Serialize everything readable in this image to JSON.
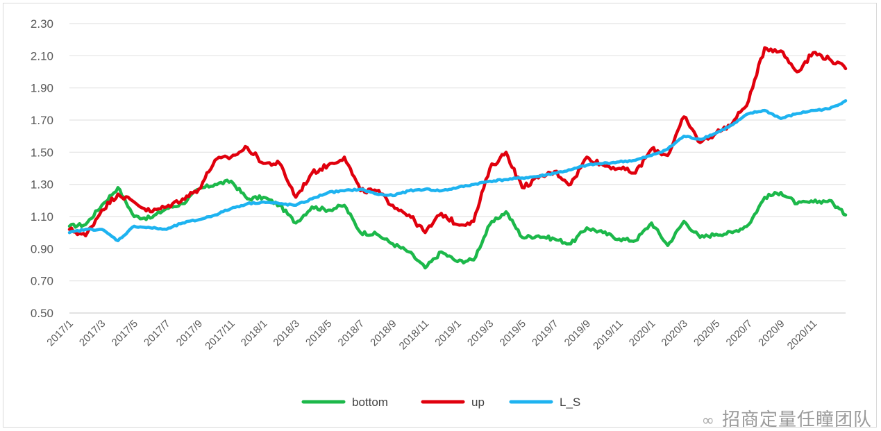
{
  "chart_data": {
    "type": "line",
    "title": "",
    "xlabel": "",
    "ylabel": "",
    "ylim": [
      0.5,
      2.3
    ],
    "yticks": [
      "0.50",
      "0.70",
      "0.90",
      "1.10",
      "1.30",
      "1.50",
      "1.70",
      "1.90",
      "2.10",
      "2.30"
    ],
    "xticks": [
      "2017/1",
      "2017/3",
      "2017/5",
      "2017/7",
      "2017/9",
      "2017/11",
      "2018/1",
      "2018/3",
      "2018/5",
      "2018/7",
      "2018/9",
      "2018/11",
      "2019/1",
      "2019/3",
      "2019/5",
      "2019/7",
      "2019/9",
      "2019/11",
      "2020/1",
      "2020/3",
      "2020/5",
      "2020/7",
      "2020/9",
      "2020/11"
    ],
    "grid": true,
    "legend_position": "bottom",
    "x": [
      "2017/1",
      "2017/2",
      "2017/3",
      "2017/4",
      "2017/5",
      "2017/6",
      "2017/7",
      "2017/8",
      "2017/9",
      "2017/10",
      "2017/11",
      "2017/12",
      "2018/1",
      "2018/2",
      "2018/3",
      "2018/4",
      "2018/5",
      "2018/6",
      "2018/7",
      "2018/8",
      "2018/9",
      "2018/10",
      "2018/11",
      "2018/12",
      "2019/1",
      "2019/2",
      "2019/3",
      "2019/4",
      "2019/5",
      "2019/6",
      "2019/7",
      "2019/8",
      "2019/9",
      "2019/10",
      "2019/11",
      "2019/12",
      "2020/1",
      "2020/2",
      "2020/3",
      "2020/4",
      "2020/5",
      "2020/6",
      "2020/7",
      "2020/8",
      "2020/9",
      "2020/10",
      "2020/11",
      "2020/12",
      "2021/1"
    ],
    "series": [
      {
        "name": "bottom",
        "color": "#1cb84a",
        "values": [
          1.04,
          1.05,
          1.17,
          1.28,
          1.1,
          1.09,
          1.15,
          1.18,
          1.27,
          1.3,
          1.32,
          1.21,
          1.22,
          1.17,
          1.06,
          1.16,
          1.14,
          1.17,
          1.0,
          0.99,
          0.93,
          0.88,
          0.78,
          0.88,
          0.82,
          0.83,
          1.05,
          1.13,
          0.97,
          0.98,
          0.96,
          0.93,
          1.03,
          1.0,
          0.96,
          0.95,
          1.06,
          0.92,
          1.07,
          0.97,
          0.99,
          1.0,
          1.05,
          1.22,
          1.25,
          1.18,
          1.19,
          1.2,
          1.11
        ]
      },
      {
        "name": "up",
        "color": "#e0000d",
        "values": [
          1.02,
          0.98,
          1.14,
          1.24,
          1.19,
          1.13,
          1.16,
          1.21,
          1.27,
          1.45,
          1.47,
          1.53,
          1.43,
          1.43,
          1.22,
          1.37,
          1.42,
          1.47,
          1.26,
          1.26,
          1.17,
          1.11,
          1.0,
          1.12,
          1.05,
          1.07,
          1.4,
          1.5,
          1.28,
          1.34,
          1.38,
          1.3,
          1.47,
          1.42,
          1.4,
          1.37,
          1.52,
          1.48,
          1.72,
          1.56,
          1.62,
          1.68,
          1.82,
          2.15,
          2.13,
          2.0,
          2.12,
          2.08,
          2.02
        ]
      },
      {
        "name": "L_S",
        "color": "#1eb3f0",
        "values": [
          1.0,
          1.02,
          1.02,
          0.95,
          1.04,
          1.03,
          1.02,
          1.06,
          1.08,
          1.11,
          1.15,
          1.18,
          1.19,
          1.18,
          1.17,
          1.21,
          1.25,
          1.26,
          1.27,
          1.24,
          1.23,
          1.26,
          1.27,
          1.26,
          1.28,
          1.3,
          1.32,
          1.33,
          1.34,
          1.35,
          1.37,
          1.39,
          1.42,
          1.43,
          1.44,
          1.45,
          1.48,
          1.52,
          1.6,
          1.58,
          1.62,
          1.67,
          1.74,
          1.76,
          1.71,
          1.74,
          1.76,
          1.77,
          1.82
        ]
      }
    ]
  },
  "watermark": {
    "icon": "wechat-icon",
    "text": "招商定量任瞳团队"
  }
}
